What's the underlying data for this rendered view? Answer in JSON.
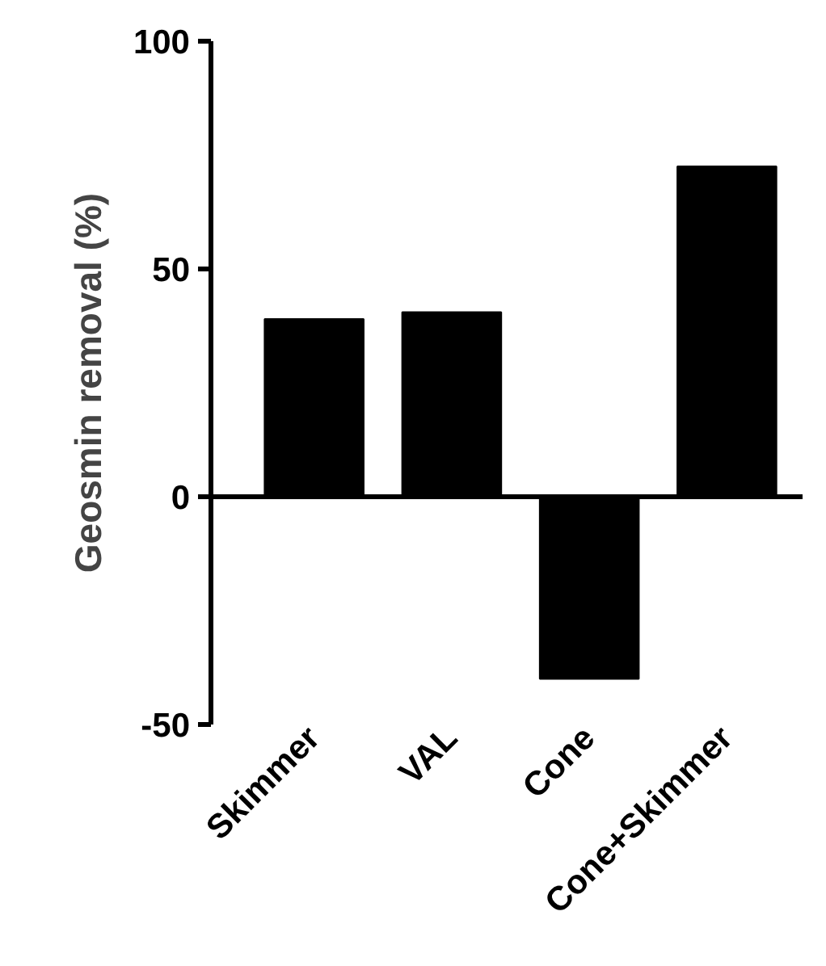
{
  "chart_data": {
    "type": "bar",
    "ylabel": "Geosmin removal (%)",
    "categories": [
      "Skimmer",
      "VAL",
      "Cone",
      "Cone+Skimmer"
    ],
    "values": [
      39,
      40.5,
      -40,
      72.5
    ],
    "color": "#000000",
    "ylim": [
      -50,
      100
    ],
    "yticks": [
      -50,
      0,
      50,
      100
    ],
    "grid": false,
    "ref_lines": [
      {
        "axis": "y",
        "value": 0
      }
    ]
  }
}
